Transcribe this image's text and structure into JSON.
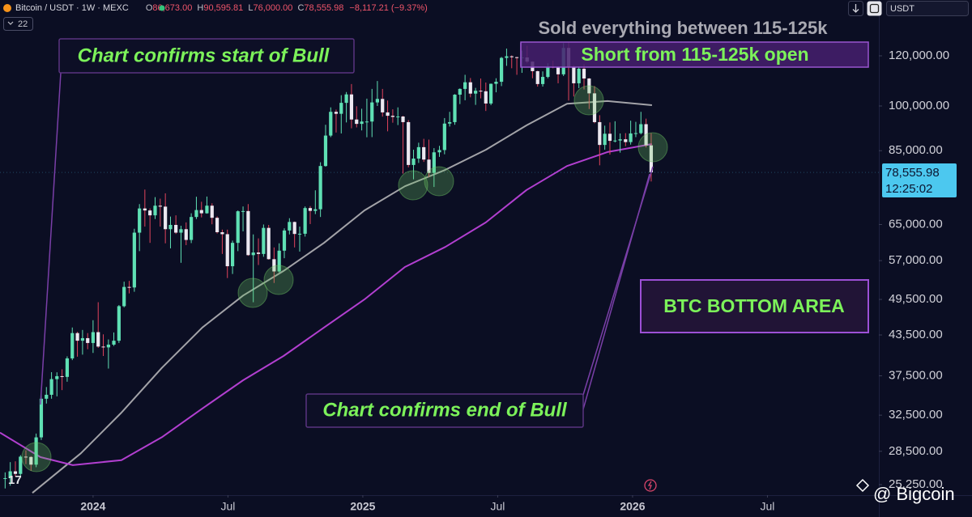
{
  "header": {
    "symbol": "Bitcoin / USDT · 1W · MEXC",
    "ohlc": [
      {
        "key": "O",
        "value": "86,673.00"
      },
      {
        "key": "H",
        "value": "90,595.81"
      },
      {
        "key": "L",
        "value": "76,000.00"
      },
      {
        "key": "C",
        "value": "78,555.98"
      }
    ],
    "change": "−8,117.21 (−9.37%)",
    "indicators": "22",
    "currency": "USDT",
    "watermark": "@ Bigcoin"
  },
  "chart_data": {
    "type": "candlestick",
    "log_scale": true,
    "colors": {
      "up": "#5fe0b4",
      "down": "#ece8f0",
      "down_wick": "#e2445c",
      "last_price": "#4cc8ef"
    },
    "x": [
      2023.674,
      2023.693,
      2023.712,
      2023.731,
      2023.751,
      2023.77,
      2023.789,
      2023.808,
      2023.827,
      2023.846,
      2023.866,
      2023.885,
      2023.904,
      2023.923,
      2023.942,
      2023.961,
      2023.98,
      2024.0,
      2024.019,
      2024.038,
      2024.057,
      2024.077,
      2024.096,
      2024.115,
      2024.134,
      2024.153,
      2024.172,
      2024.192,
      2024.211,
      2024.23,
      2024.249,
      2024.268,
      2024.287,
      2024.307,
      2024.326,
      2024.345,
      2024.364,
      2024.383,
      2024.402,
      2024.422,
      2024.441,
      2024.46,
      2024.479,
      2024.498,
      2024.517,
      2024.537,
      2024.556,
      2024.575,
      2024.594,
      2024.613,
      2024.632,
      2024.651,
      2024.671,
      2024.69,
      2024.709,
      2024.728,
      2024.747,
      2024.766,
      2024.786,
      2024.805,
      2024.824,
      2024.843,
      2024.862,
      2024.881,
      2024.901,
      2024.92,
      2024.939,
      2024.958,
      2024.977,
      2024.996,
      2025.015,
      2025.034,
      2025.054,
      2025.073,
      2025.092,
      2025.111,
      2025.13,
      2025.149,
      2025.169,
      2025.188,
      2025.207,
      2025.226,
      2025.245,
      2025.264,
      2025.284,
      2025.303,
      2025.322,
      2025.341,
      2025.36,
      2025.379,
      2025.399,
      2025.418,
      2025.437,
      2025.456,
      2025.475,
      2025.494,
      2025.514,
      2025.533,
      2025.552,
      2025.571,
      2025.59,
      2025.609,
      2025.629,
      2025.648,
      2025.667,
      2025.686,
      2025.705,
      2025.724,
      2025.744,
      2025.763,
      2025.782,
      2025.801,
      2025.82,
      2025.839,
      2025.859,
      2025.878,
      2025.897,
      2025.916,
      2025.935,
      2025.954,
      2025.974,
      2025.993,
      2026.012,
      2026.031,
      2026.05,
      2026.069
    ],
    "open": [
      25800,
      25850,
      26500,
      26250,
      27950,
      27920,
      27150,
      29980,
      34500,
      35000,
      37050,
      37450,
      37350,
      39950,
      43800,
      42600,
      43000,
      42250,
      43950,
      41700,
      41580,
      42000,
      42600,
      48300,
      51800,
      51700,
      63100,
      68900,
      68400,
      67200,
      69600,
      69360,
      63900,
      64900,
      63100,
      63900,
      61450,
      66800,
      68500,
      67700,
      69600,
      66600,
      63200,
      62750,
      55850,
      60800,
      68200,
      68250,
      58150,
      58700,
      58400,
      64200,
      57300,
      54800,
      59100,
      63600,
      65600,
      62800,
      62850,
      69000,
      68300,
      68700,
      80400,
      89800,
      97900,
      97200,
      101150,
      104300,
      95200,
      93700,
      94500,
      94500,
      101300,
      102600,
      97700,
      96500,
      96100,
      96250,
      94300,
      80700,
      82600,
      86100,
      82300,
      78400,
      84500,
      85200,
      93800,
      94300,
      104200,
      106400,
      109000,
      104600,
      105700,
      105500,
      100900,
      108400,
      109200,
      119100,
      119800,
      119400,
      119100,
      119300,
      117500,
      113500,
      108300,
      111150,
      115300,
      115200,
      112200,
      123500,
      115200,
      108600,
      114500,
      110500,
      104700,
      94300,
      86800,
      90400,
      88100,
      88200,
      88600,
      87700,
      90500,
      90600,
      93600,
      86673
    ],
    "high": [
      26400,
      27400,
      27480,
      28100,
      28600,
      28000,
      30400,
      35200,
      36000,
      38000,
      37980,
      38400,
      40250,
      44700,
      44000,
      44300,
      43800,
      45900,
      49000,
      43600,
      42800,
      43900,
      48500,
      52800,
      52950,
      64000,
      70000,
      73800,
      68900,
      71800,
      71400,
      72800,
      66900,
      67200,
      64700,
      65500,
      67700,
      71900,
      70600,
      71950,
      70200,
      66950,
      63800,
      63800,
      61300,
      68400,
      69400,
      70000,
      62700,
      61800,
      65000,
      64900,
      59800,
      60700,
      64100,
      66500,
      65700,
      64500,
      69400,
      69500,
      73600,
      81500,
      93400,
      99500,
      98700,
      104000,
      105200,
      108300,
      99900,
      99000,
      102700,
      106400,
      109500,
      106400,
      102000,
      98800,
      99500,
      96500,
      95000,
      85300,
      87500,
      88750,
      88500,
      85800,
      86500,
      95700,
      97900,
      104400,
      106600,
      112000,
      110700,
      106800,
      110500,
      108900,
      108500,
      110600,
      119500,
      123200,
      120200,
      119600,
      122300,
      124500,
      117600,
      113700,
      113400,
      116800,
      117900,
      115400,
      125700,
      126200,
      116000,
      115400,
      116400,
      110700,
      107500,
      96700,
      93100,
      94200,
      94600,
      90500,
      90600,
      94800,
      94400,
      97900,
      95500,
      90595.81
    ],
    "low": [
      24900,
      25150,
      26000,
      26000,
      27200,
      26550,
      26900,
      29700,
      33900,
      34500,
      34800,
      35600,
      36700,
      39700,
      40200,
      40500,
      41300,
      40750,
      41500,
      40300,
      38500,
      41800,
      42250,
      48100,
      50600,
      50900,
      59000,
      64500,
      60800,
      66300,
      64500,
      60700,
      59600,
      62800,
      56550,
      60300,
      60750,
      66300,
      66700,
      67600,
      65050,
      62900,
      58400,
      53500,
      54300,
      59000,
      63400,
      58000,
      49000,
      56100,
      57800,
      57200,
      52550,
      54600,
      57500,
      62700,
      59800,
      58900,
      62200,
      65100,
      67500,
      66800,
      80200,
      89300,
      90800,
      90500,
      94200,
      92200,
      92500,
      91500,
      89250,
      89300,
      100000,
      96200,
      91200,
      94100,
      93300,
      78200,
      80000,
      76600,
      81300,
      81600,
      77200,
      74500,
      83100,
      83900,
      92800,
      93400,
      100700,
      102100,
      103200,
      100400,
      102800,
      98200,
      100300,
      105100,
      107500,
      115700,
      114700,
      112000,
      112800,
      116800,
      110600,
      107300,
      107300,
      110600,
      114700,
      108600,
      111500,
      102000,
      103500,
      106700,
      106200,
      98900,
      93900,
      80600,
      85300,
      83800,
      87600,
      84400,
      86400,
      86900,
      89300,
      90200,
      86000,
      76000
    ],
    "close": [
      25850,
      26500,
      26250,
      27950,
      27920,
      27150,
      29980,
      34500,
      35000,
      37050,
      37450,
      37350,
      39950,
      43800,
      42600,
      43000,
      42250,
      43950,
      41700,
      41580,
      42000,
      42600,
      48300,
      51800,
      51700,
      63100,
      68900,
      68400,
      67200,
      69600,
      69360,
      63900,
      64900,
      63100,
      63900,
      61450,
      66800,
      68500,
      67700,
      69600,
      66600,
      63200,
      62750,
      55850,
      60800,
      68200,
      68250,
      58150,
      58700,
      58400,
      64200,
      57300,
      54800,
      59100,
      63600,
      65600,
      62800,
      62850,
      69000,
      68300,
      68700,
      80400,
      89800,
      97900,
      97200,
      101150,
      104300,
      95200,
      93700,
      94500,
      94500,
      101300,
      102600,
      97700,
      96500,
      96100,
      96250,
      94300,
      80700,
      82600,
      86100,
      82300,
      78400,
      84500,
      85200,
      93800,
      94300,
      104200,
      106400,
      109000,
      104600,
      105700,
      105500,
      100900,
      108400,
      109200,
      119100,
      119800,
      119400,
      119100,
      119300,
      117500,
      113500,
      108300,
      111150,
      115300,
      115200,
      112200,
      123500,
      115200,
      108600,
      114500,
      110500,
      104700,
      94300,
      86800,
      90400,
      88100,
      88200,
      88600,
      87700,
      90500,
      90600,
      93600,
      86673.19,
      78555.98
    ],
    "lines": [
      {
        "color": "#a3a3a8",
        "x": [
          2023.775,
          2023.955,
          2024.105,
          2024.255,
          2024.405,
          2024.556,
          2024.706,
          2024.856,
          2025.006,
          2025.156,
          2025.306,
          2025.456,
          2025.607,
          2025.757,
          2025.907,
          2026.072
        ],
        "values": [
          24500,
          28300,
          32800,
          38600,
          44700,
          50200,
          54900,
          60800,
          68400,
          74700,
          79300,
          85300,
          93200,
          100800,
          101800,
          100300
        ]
      },
      {
        "color": "#b23fd0",
        "x": [
          2023.655,
          2023.805,
          2023.925,
          2024.105,
          2024.255,
          2024.405,
          2024.556,
          2024.706,
          2024.856,
          2025.006,
          2025.156,
          2025.306,
          2025.456,
          2025.607,
          2025.757,
          2025.907,
          2026.072
        ],
        "values": [
          30500,
          27900,
          27100,
          27600,
          30000,
          33300,
          36900,
          40300,
          44700,
          49500,
          55700,
          59900,
          65500,
          73700,
          80400,
          84600,
          87100
        ]
      }
    ],
    "xlim": [
      2023.655,
      2026.913
    ],
    "xticks": [
      {
        "value": 2024,
        "label": "2024"
      },
      {
        "value": 2024.5,
        "label": "Jul"
      },
      {
        "value": 2025,
        "label": "2025"
      },
      {
        "value": 2025.5,
        "label": "Jul"
      },
      {
        "value": 2026,
        "label": "2026"
      },
      {
        "value": 2026.5,
        "label": "Jul"
      }
    ],
    "ylim": [
      24300,
      147000
    ],
    "yticks": [
      {
        "value": 25250,
        "label": "25,250.00"
      },
      {
        "value": 28500,
        "label": "28,500.00"
      },
      {
        "value": 32500,
        "label": "32,500.00"
      },
      {
        "value": 37500,
        "label": "37,500.00"
      },
      {
        "value": 43500,
        "label": "43,500.00"
      },
      {
        "value": 49500,
        "label": "49,500.00"
      },
      {
        "value": 57000,
        "label": "57,000.00"
      },
      {
        "value": 65000,
        "label": "65,000.00"
      },
      {
        "value": 85000,
        "label": "85,000.00"
      },
      {
        "value": 100000,
        "label": "100,000.00"
      },
      {
        "value": 120000,
        "label": "120,000.00"
      }
    ],
    "last_price_label": "78,555.98",
    "countdown": "12:25:02",
    "annotations": [
      "Chart confirms start of Bull",
      "Sold everything between 115-125k",
      "Short from 115-125k open",
      "BTC BOTTOM AREA",
      "Chart confirms end of Bull"
    ]
  }
}
